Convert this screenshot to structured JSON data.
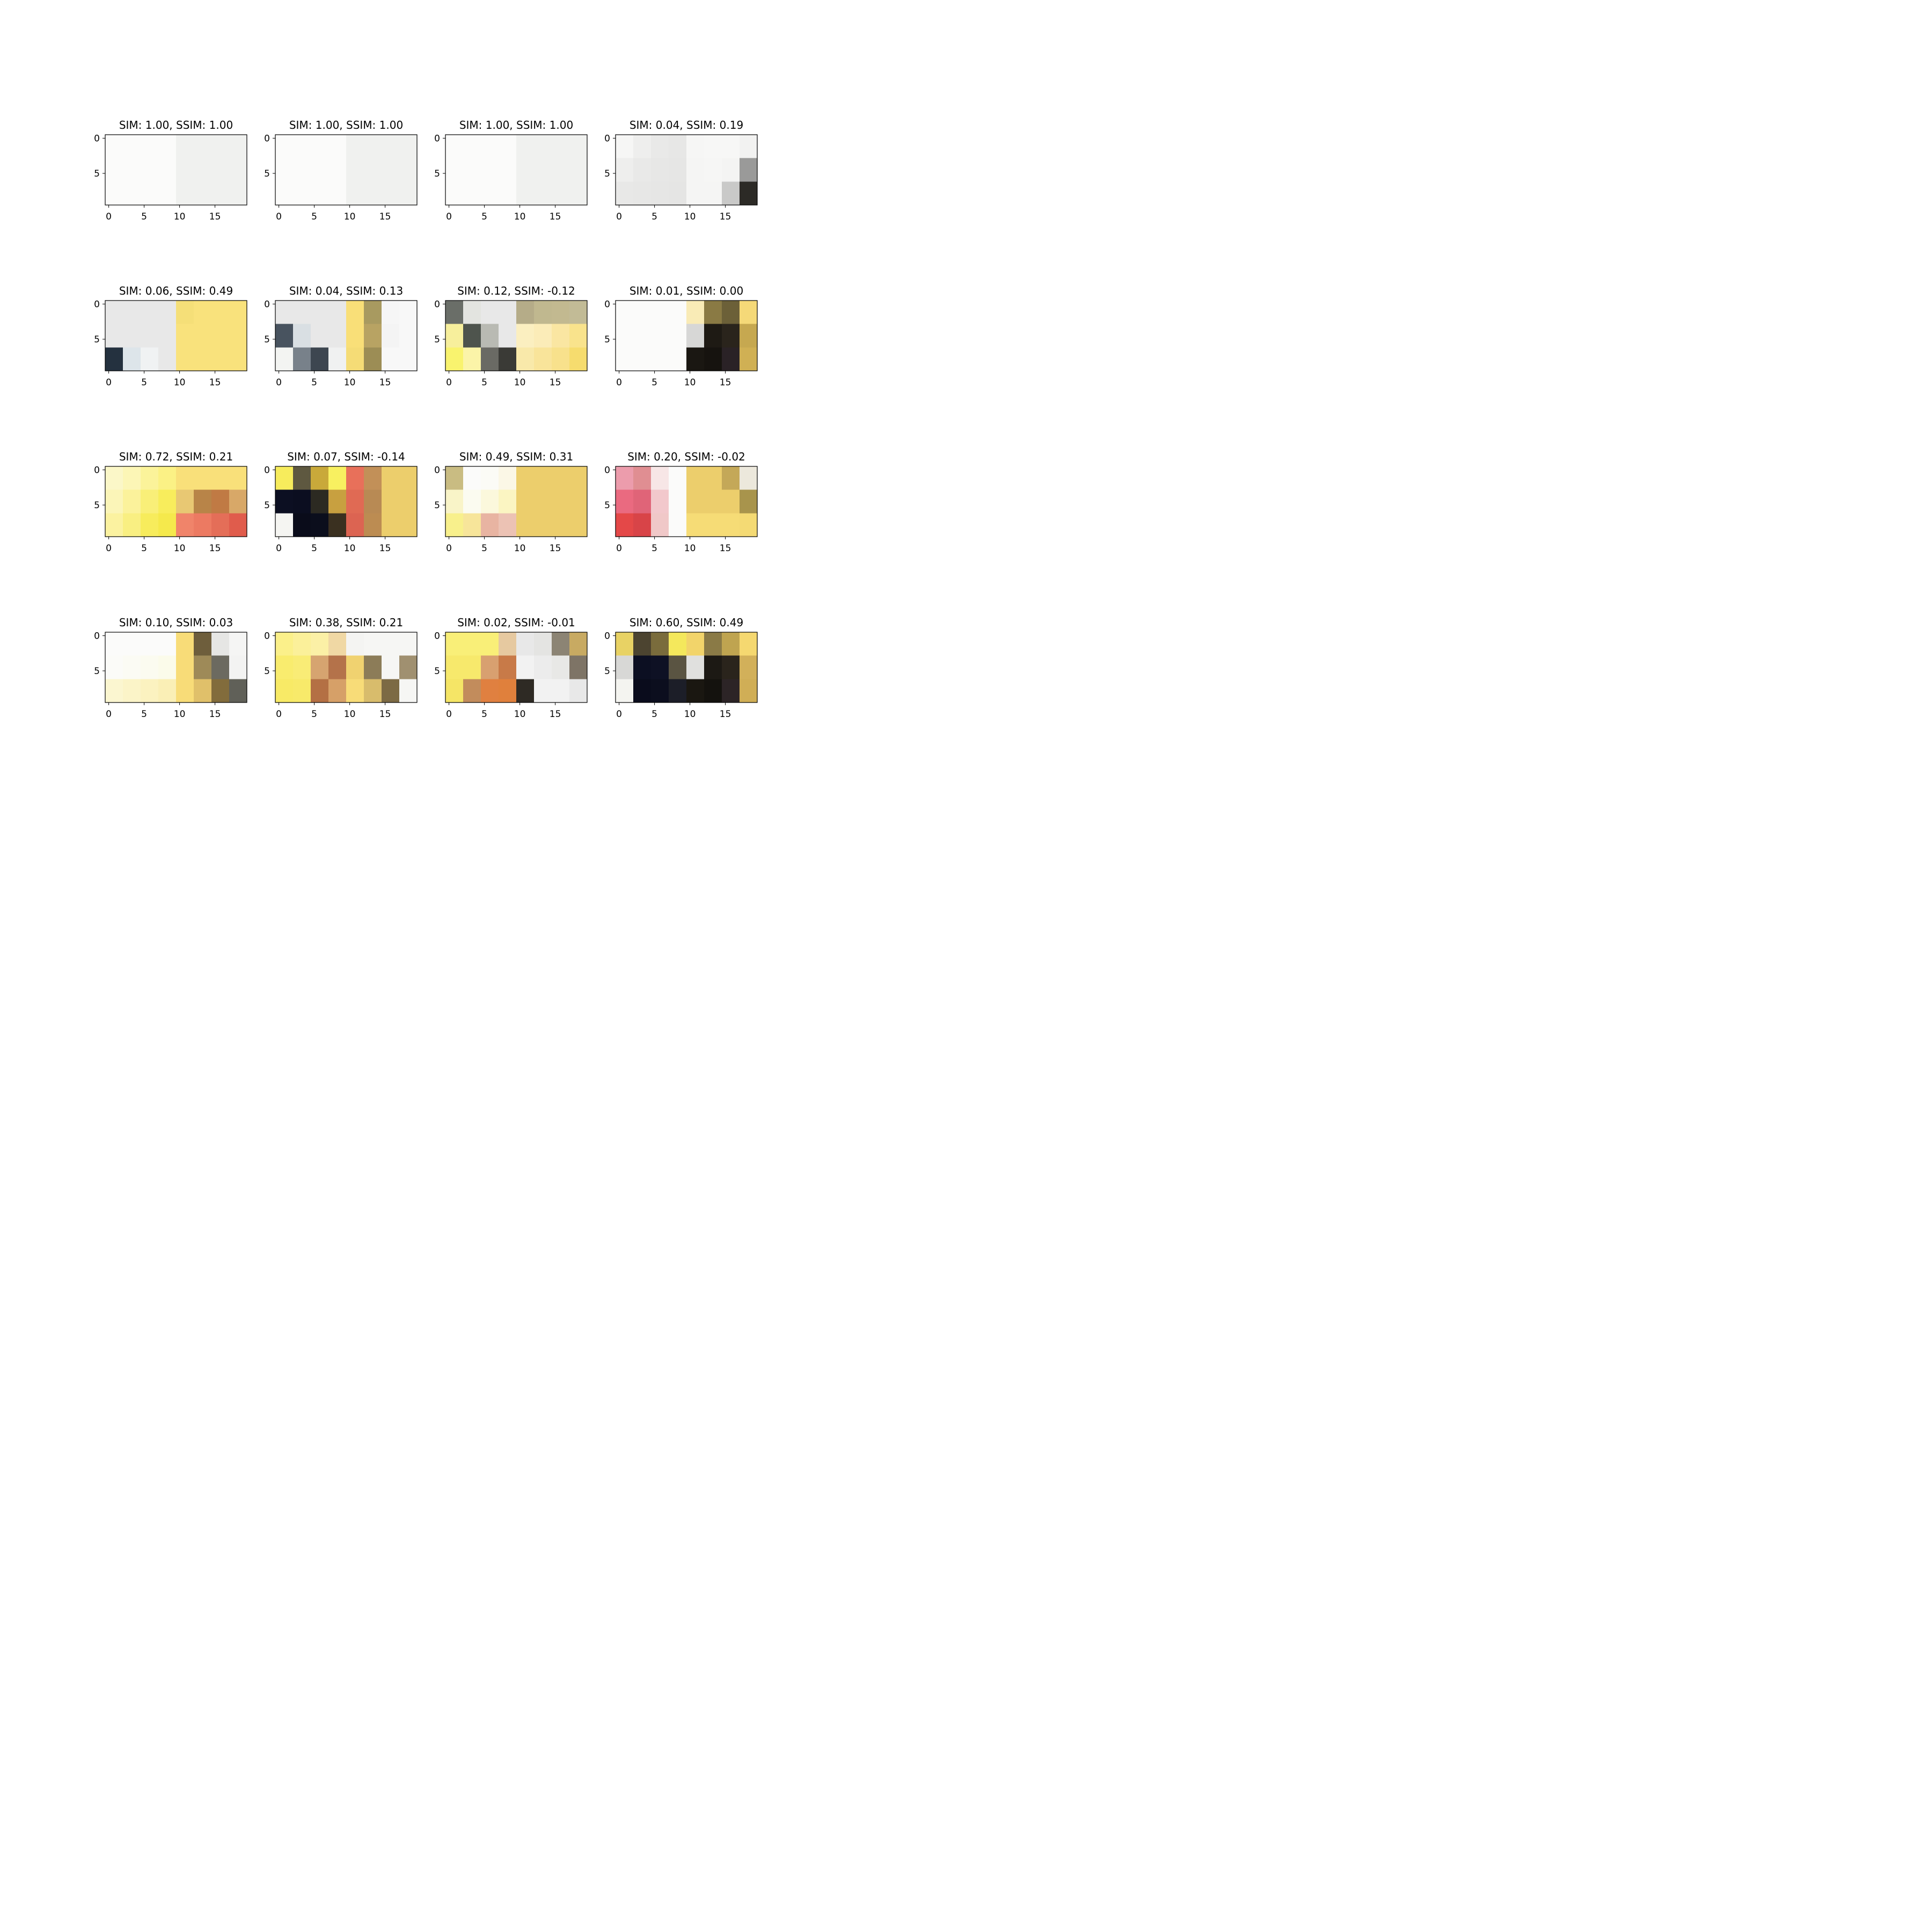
{
  "chart_data": {
    "type": "heatmap",
    "grid": {
      "rows": 4,
      "cols": 4
    },
    "x_ticks": [
      "0",
      "5",
      "10",
      "15"
    ],
    "y_ticks": [
      "0",
      "5"
    ],
    "xlim": [
      -0.5,
      19.5
    ],
    "ylim": [
      9.5,
      -0.5
    ],
    "panels": [
      {
        "title": "SIM: 1.00, SSIM: 1.00",
        "left_pixels": [
          [
            "#fbfbfa"
          ]
        ],
        "right_pixels": [
          [
            "#f0f1ef"
          ]
        ]
      },
      {
        "title": "SIM: 1.00, SSIM: 1.00",
        "left_pixels": [
          [
            "#fbfbfa"
          ]
        ],
        "right_pixels": [
          [
            "#f0f1ef"
          ]
        ]
      },
      {
        "title": "SIM: 1.00, SSIM: 1.00",
        "left_pixels": [
          [
            "#fbfbfa"
          ]
        ],
        "right_pixels": [
          [
            "#f0f1ef"
          ]
        ]
      },
      {
        "title": "SIM: 0.04, SSIM: 0.19",
        "left_pixels": [
          [
            "#f6f6f5",
            "#eeeeed",
            "#e9e9e8",
            "#e7e7e6"
          ],
          [
            "#eeeeed",
            "#e9e9e8",
            "#e7e7e6",
            "#e6e6e5"
          ],
          [
            "#e8e8e7",
            "#e7e7e6",
            "#e6e6e5",
            "#e5e5e4"
          ]
        ],
        "right_pixels": [
          [
            "#f6f6f5",
            "#f7f7f6",
            "#f7f7f6",
            "#f2f2f1"
          ],
          [
            "#f5f5f4",
            "#f6f6f5",
            "#f4f4f3",
            "#9a9a99"
          ],
          [
            "#f5f5f4",
            "#f5f5f4",
            "#c9c9c8",
            "#2c2a26"
          ]
        ]
      },
      {
        "title": "SIM: 0.06, SSIM: 0.49",
        "left_pixels": [
          [
            "#e8e8e8",
            "#e8e8e8",
            "#e8e8e8",
            "#e8e8e8"
          ],
          [
            "#e8e8e8",
            "#e8e8e8",
            "#e8e8e8",
            "#e8e8e8"
          ],
          [
            "#24313f",
            "#dde5ea",
            "#f0f2f3",
            "#e8e8e8"
          ]
        ],
        "right_pixels": [
          [
            "#f5df78",
            "#f9e27c",
            "#f9e27c",
            "#f9e27c"
          ],
          [
            "#f9e27c",
            "#f9e27c",
            "#f9e27c",
            "#f9e27c"
          ],
          [
            "#f9e27c",
            "#f9e27c",
            "#f9e27c",
            "#f9e27c"
          ]
        ]
      },
      {
        "title": "SIM: 0.04, SSIM: 0.13",
        "left_pixels": [
          [
            "#e8e8e8",
            "#e8e8e8",
            "#e8e8e8",
            "#e8e8e8"
          ],
          [
            "#48535f",
            "#d9dfe3",
            "#e8e8e8",
            "#e8e8e8"
          ],
          [
            "#f3f4f2",
            "#78818a",
            "#3d4650",
            "#f0f1f1"
          ]
        ],
        "right_pixels": [
          [
            "#f9df78",
            "#a89a60",
            "#f6f6f6",
            "#f8f8f8"
          ],
          [
            "#f9df78",
            "#b8a363",
            "#f4f4f4",
            "#f8f8f8"
          ],
          [
            "#f5dc76",
            "#9c8d55",
            "#f8f8f8",
            "#f8f8f8"
          ]
        ]
      },
      {
        "title": "SIM: 0.12, SSIM: -0.12",
        "left_pixels": [
          [
            "#6a6e68",
            "#e3e4e0",
            "#e8e8e8",
            "#e8e8e8"
          ],
          [
            "#f7ef9c",
            "#4e544d",
            "#b9bab3",
            "#e8e8e8"
          ],
          [
            "#f9f36e",
            "#fbf4a8",
            "#6a6a64",
            "#3a3a36"
          ]
        ],
        "right_pixels": [
          [
            "#b5ac88",
            "#c0b88f",
            "#c2b990",
            "#c2bb96"
          ],
          [
            "#fbefc0",
            "#fbecb8",
            "#fae6a2",
            "#f9e38c"
          ],
          [
            "#f9e9aa",
            "#f9e49a",
            "#f8e18c",
            "#f6dc6e"
          ]
        ]
      },
      {
        "title": "SIM: 0.01, SSIM: 0.00",
        "left_pixels": [
          [
            "#fbfbfa"
          ]
        ],
        "right_pixels": [
          [
            "#f9ebb6",
            "#8a7a44",
            "#6c6038",
            "#f5d978"
          ],
          [
            "#d7d7d6",
            "#1e1a14",
            "#2a241c",
            "#c6a850"
          ],
          [
            "#1a1712",
            "#16130f",
            "#2a2226",
            "#d0b054"
          ]
        ]
      },
      {
        "title": "SIM: 0.72, SSIM: 0.21",
        "left_pixels": [
          [
            "#fbf7c8",
            "#fcf6b6",
            "#fbf39a",
            "#fbf185"
          ],
          [
            "#fbf5b8",
            "#fbf29b",
            "#f9ef78",
            "#f8ed5c"
          ],
          [
            "#fbf2a0",
            "#f9ef82",
            "#f7ec5c",
            "#f5e94c"
          ]
        ],
        "right_pixels": [
          [
            "#f9e07a",
            "#f9e07a",
            "#f9e07a",
            "#f9e07a"
          ],
          [
            "#e8c873",
            "#b88448",
            "#c07a44",
            "#d8a868"
          ],
          [
            "#f0846a",
            "#ec7a62",
            "#e46e58",
            "#e05c4c"
          ]
        ]
      },
      {
        "title": "SIM: 0.07, SSIM: -0.14",
        "left_pixels": [
          [
            "#f7ec5c",
            "#5e5840",
            "#c9a93a",
            "#f8f060"
          ],
          [
            "#0c0f22",
            "#0b0e20",
            "#2c2a22",
            "#c8a040"
          ],
          [
            "#f5f5f2",
            "#0a0c1a",
            "#0b0e1c",
            "#3a3020"
          ]
        ],
        "right_pixels": [
          [
            "#e8705a",
            "#c29058",
            "#ecce6c",
            "#ecce6c"
          ],
          [
            "#e06a54",
            "#b88a54",
            "#ecce6c",
            "#ecce6c"
          ],
          [
            "#dc6452",
            "#bc8c52",
            "#ecce6c",
            "#ecce6c"
          ]
        ]
      },
      {
        "title": "SIM: 0.49, SSIM: 0.31",
        "left_pixels": [
          [
            "#c9bc82",
            "#fbfbfa",
            "#fbfbf6",
            "#fbf7e6"
          ],
          [
            "#f9f4c8",
            "#fbfbf0",
            "#fbf8dc",
            "#fbf5c2"
          ],
          [
            "#f8f08c",
            "#f7e59a",
            "#e8b4a2",
            "#ecc2b4"
          ]
        ],
        "right_pixels": [
          [
            "#ecce6c"
          ]
        ]
      },
      {
        "title": "SIM: 0.20, SSIM: -0.02",
        "left_pixels": [
          [
            "#ec9cac",
            "#e08e92",
            "#f7e6e6",
            "#fbfbfa"
          ],
          [
            "#ea6a80",
            "#e06478",
            "#f2c8cc",
            "#fbfbfa"
          ],
          [
            "#e44848",
            "#d84448",
            "#f0c8c8",
            "#fbfbfa"
          ]
        ],
        "right_pixels": [
          [
            "#ecce6c",
            "#ecce6c",
            "#c4a858",
            "#ece8dc"
          ],
          [
            "#ecce6c",
            "#ecce6c",
            "#ecce6c",
            "#a8944c"
          ],
          [
            "#f6dc76",
            "#f6dc76",
            "#f6dc76",
            "#f4da74"
          ]
        ]
      },
      {
        "title": "SIM: 0.10, SSIM: 0.03",
        "left_pixels": [
          [
            "#fbfbfa",
            "#fbfbfa",
            "#fbfbfa",
            "#fbfbfa"
          ],
          [
            "#fbfbf8",
            "#fbfbf4",
            "#fbfbf0",
            "#fbfbea"
          ],
          [
            "#fbf6d0",
            "#fbf4c8",
            "#fbf2c0",
            "#faefb6"
          ]
        ],
        "right_pixels": [
          [
            "#f8dc78",
            "#6e5e3c",
            "#e6e6e4",
            "#f5f5f4"
          ],
          [
            "#f8dc78",
            "#9e8a58",
            "#6c6a60",
            "#f3f3f2"
          ],
          [
            "#f8dc78",
            "#e0c06a",
            "#826c3c",
            "#606058"
          ]
        ]
      },
      {
        "title": "SIM: 0.38, SSIM: 0.21",
        "left_pixels": [
          [
            "#fbf08a",
            "#fbf09a",
            "#fbf0a6",
            "#f0d8a4"
          ],
          [
            "#f9ec6e",
            "#f9ec76",
            "#d6a470",
            "#b4724a"
          ],
          [
            "#f8ea66",
            "#f8ea6a",
            "#b47044",
            "#d6a068"
          ]
        ],
        "right_pixels": [
          [
            "#f4f4f2",
            "#f6f6f4",
            "#f6f6f4",
            "#f6f6f4"
          ],
          [
            "#f0d270",
            "#8c7c58",
            "#f6f6f4",
            "#a09070"
          ],
          [
            "#f8dc78",
            "#d8bc6c",
            "#7c6a44",
            "#f6f6f4"
          ]
        ]
      },
      {
        "title": "SIM: 0.02, SSIM: -0.01",
        "left_pixels": [
          [
            "#f9ef78",
            "#f9ef78",
            "#f9ef78",
            "#e6c9a0"
          ],
          [
            "#f7e96c",
            "#f7e96c",
            "#d8a070",
            "#c87a48"
          ],
          [
            "#f5e566",
            "#c28c5c",
            "#e08040",
            "#e0803c"
          ]
        ],
        "right_pixels": [
          [
            "#e8e8e8",
            "#e4e4e2",
            "#8c8474",
            "#c8aa62"
          ],
          [
            "#f2f2f2",
            "#ececec",
            "#e8e8e6",
            "#7e7466"
          ],
          [
            "#2e2a24",
            "#f2f2f2",
            "#f2f2f2",
            "#e8e8e8"
          ]
        ]
      },
      {
        "title": "SIM: 0.60, SSIM: 0.49",
        "left_pixels": [
          [
            "#e8d264",
            "#4c4430",
            "#7a6c3c",
            "#f4e85c"
          ],
          [
            "#d8d8d6",
            "#0c0f22",
            "#0e1124",
            "#5a5442"
          ],
          [
            "#f4f4f0",
            "#0a0c1c",
            "#0c0e1e",
            "#1c1e28"
          ]
        ],
        "right_pixels": [
          [
            "#f2d46a",
            "#8a7a46",
            "#bfa450",
            "#f5d870"
          ],
          [
            "#e0e0de",
            "#1c1914",
            "#2a241c",
            "#d2b05a"
          ],
          [
            "#1a1711",
            "#14120e",
            "#2c2426",
            "#d0ae56"
          ]
        ]
      }
    ]
  }
}
